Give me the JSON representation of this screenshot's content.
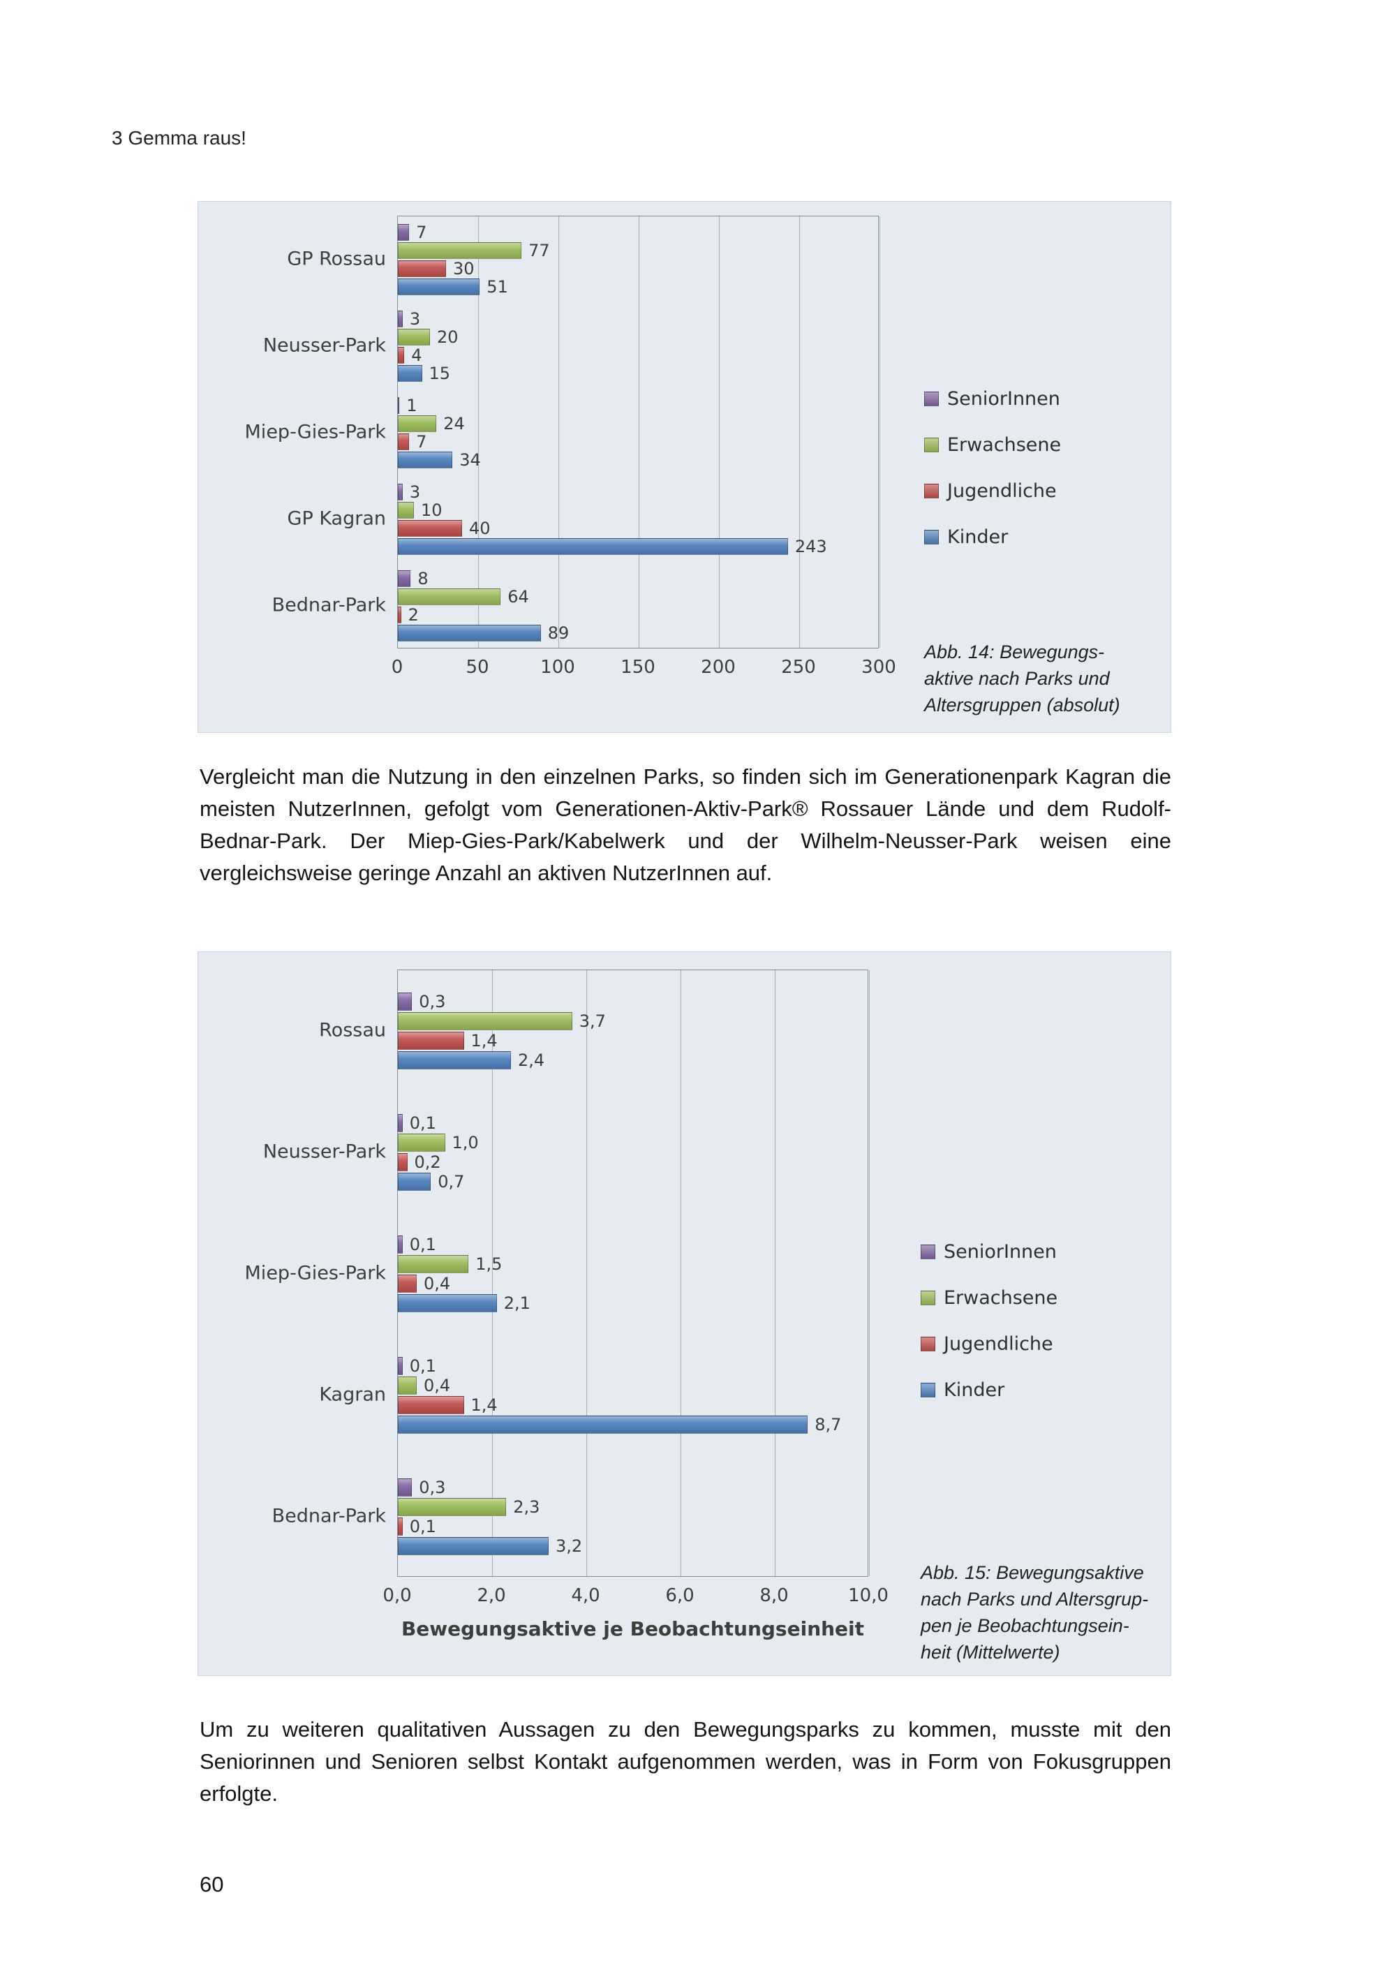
{
  "page": {
    "header": "3 Gemma raus!",
    "paragraph1": "Vergleicht man die Nutzung in den einzelnen Parks, so finden sich im Generationenpark Kagran die meisten NutzerInnen, gefolgt vom Generationen-Aktiv-Park® Rossauer Lände und dem Rudolf-Bednar-Park. Der Miep-Gies-Park/Kabelwerk und der Wilhelm-Neusser-Park weisen eine vergleichsweise geringe Anzahl an aktiven NutzerInnen auf.",
    "paragraph2": "Um zu weiteren qualitativen Aussagen zu den Bewegungsparks zu kommen, musste mit den Seniorinnen und Senioren selbst Kontakt aufgenommen werden, was in Form von Fokusgruppen erfolgte.",
    "page_number": "60"
  },
  "colors": {
    "seniorinnen": "#8064A2",
    "erwachsene": "#9BBB59",
    "jugendliche": "#C0504D",
    "kinder": "#4F81BD",
    "figure_background": "#e6eaf1"
  },
  "chart_data": [
    {
      "type": "bar",
      "orientation": "horizontal",
      "caption": "Abb. 14: Bewegungs-\naktive nach Parks und\nAltersgruppen (absolut)",
      "categories": [
        "GP Rossau",
        "Neusser-Park",
        "Miep-Gies-Park",
        "GP Kagran",
        "Bednar-Park"
      ],
      "series": [
        {
          "name": "SeniorInnen",
          "color": "#8064A2",
          "values": [
            7,
            3,
            1,
            3,
            8
          ]
        },
        {
          "name": "Erwachsene",
          "color": "#9BBB59",
          "values": [
            77,
            20,
            24,
            10,
            64
          ]
        },
        {
          "name": "Jugendliche",
          "color": "#C0504D",
          "values": [
            30,
            4,
            7,
            40,
            2
          ]
        },
        {
          "name": "Kinder",
          "color": "#4F81BD",
          "values": [
            51,
            15,
            34,
            243,
            89
          ]
        }
      ],
      "xlim": [
        0,
        300
      ],
      "xticks": [
        0,
        50,
        100,
        150,
        200,
        250,
        300
      ],
      "xtick_labels": [
        "0",
        "50",
        "100",
        "150",
        "200",
        "250",
        "300"
      ],
      "xlabel": "",
      "legend_position": "right",
      "grid": "vertical"
    },
    {
      "type": "bar",
      "orientation": "horizontal",
      "caption": "Abb. 15: Bewegungsaktive\nnach Parks und Altersgrup-\npen je Beobachtungsein-\nheit (Mittelwerte)",
      "categories": [
        "Rossau",
        "Neusser-Park",
        "Miep-Gies-Park",
        "Kagran",
        "Bednar-Park"
      ],
      "series": [
        {
          "name": "SeniorInnen",
          "color": "#8064A2",
          "values": [
            0.3,
            0.1,
            0.1,
            0.1,
            0.3
          ],
          "labels": [
            "0,3",
            "0,1",
            "0,1",
            "0,1",
            "0,3"
          ]
        },
        {
          "name": "Erwachsene",
          "color": "#9BBB59",
          "values": [
            3.7,
            1.0,
            1.5,
            0.4,
            2.3
          ],
          "labels": [
            "3,7",
            "1,0",
            "1,5",
            "0,4",
            "2,3"
          ]
        },
        {
          "name": "Jugendliche",
          "color": "#C0504D",
          "values": [
            1.4,
            0.2,
            0.4,
            1.4,
            0.1
          ],
          "labels": [
            "1,4",
            "0,2",
            "0,4",
            "1,4",
            "0,1"
          ]
        },
        {
          "name": "Kinder",
          "color": "#4F81BD",
          "values": [
            2.4,
            0.7,
            2.1,
            8.7,
            3.2
          ],
          "labels": [
            "2,4",
            "0,7",
            "2,1",
            "8,7",
            "3,2"
          ]
        }
      ],
      "xlim": [
        0,
        10
      ],
      "xticks": [
        0,
        2,
        4,
        6,
        8,
        10
      ],
      "xtick_labels": [
        "0,0",
        "2,0",
        "4,0",
        "6,0",
        "8,0",
        "10,0"
      ],
      "xlabel": "Bewegungsaktive je Beobachtungseinheit",
      "legend_position": "right",
      "grid": "vertical"
    }
  ]
}
